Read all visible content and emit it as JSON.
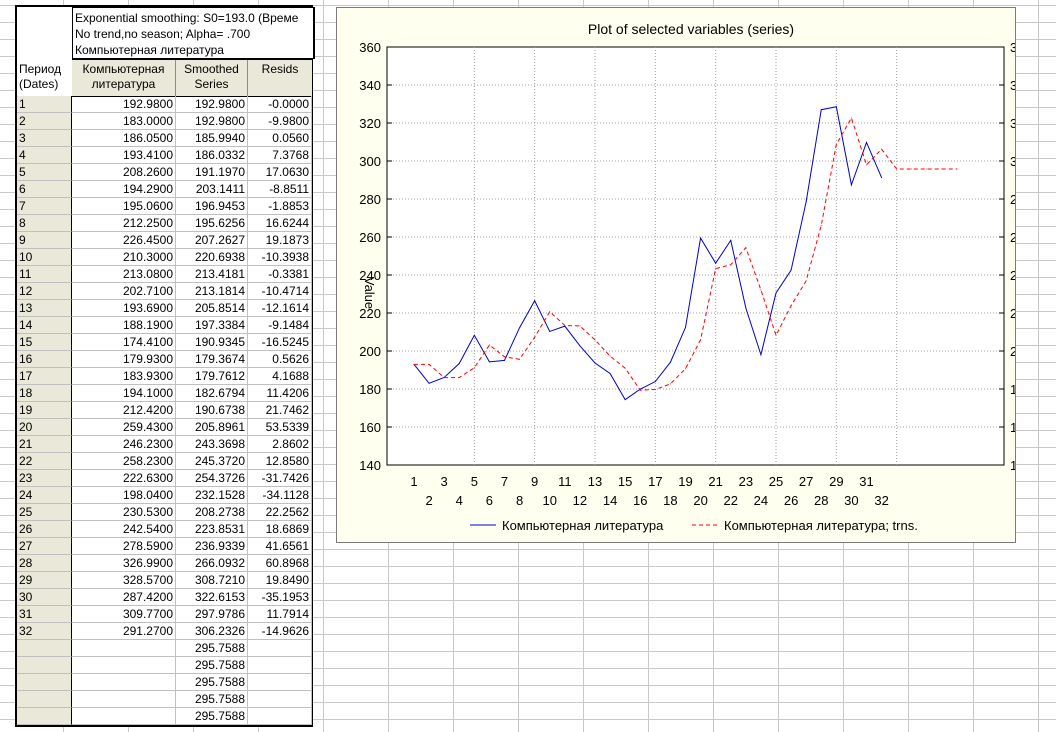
{
  "table": {
    "header_lines": [
      "Exponential smoothing: S0=193.0 (Време",
      "No trend,no season; Alpha= .700",
      "Компьютерная литература"
    ],
    "period_header": [
      "Период",
      "(Dates)"
    ],
    "columns": [
      [
        "Компьютерная",
        "литература"
      ],
      [
        "Smoothed",
        "Series"
      ],
      [
        "Resids",
        ""
      ]
    ],
    "rows": [
      {
        "id": "1",
        "a": "192.9800",
        "b": "192.9800",
        "c": "-0.0000"
      },
      {
        "id": "2",
        "a": "183.0000",
        "b": "192.9800",
        "c": "-9.9800"
      },
      {
        "id": "3",
        "a": "186.0500",
        "b": "185.9940",
        "c": "0.0560"
      },
      {
        "id": "4",
        "a": "193.4100",
        "b": "186.0332",
        "c": "7.3768"
      },
      {
        "id": "5",
        "a": "208.2600",
        "b": "191.1970",
        "c": "17.0630"
      },
      {
        "id": "6",
        "a": "194.2900",
        "b": "203.1411",
        "c": "-8.8511"
      },
      {
        "id": "7",
        "a": "195.0600",
        "b": "196.9453",
        "c": "-1.8853"
      },
      {
        "id": "8",
        "a": "212.2500",
        "b": "195.6256",
        "c": "16.6244"
      },
      {
        "id": "9",
        "a": "226.4500",
        "b": "207.2627",
        "c": "19.1873"
      },
      {
        "id": "10",
        "a": "210.3000",
        "b": "220.6938",
        "c": "-10.3938"
      },
      {
        "id": "11",
        "a": "213.0800",
        "b": "213.4181",
        "c": "-0.3381"
      },
      {
        "id": "12",
        "a": "202.7100",
        "b": "213.1814",
        "c": "-10.4714"
      },
      {
        "id": "13",
        "a": "193.6900",
        "b": "205.8514",
        "c": "-12.1614"
      },
      {
        "id": "14",
        "a": "188.1900",
        "b": "197.3384",
        "c": "-9.1484"
      },
      {
        "id": "15",
        "a": "174.4100",
        "b": "190.9345",
        "c": "-16.5245"
      },
      {
        "id": "16",
        "a": "179.9300",
        "b": "179.3674",
        "c": "0.5626"
      },
      {
        "id": "17",
        "a": "183.9300",
        "b": "179.7612",
        "c": "4.1688"
      },
      {
        "id": "18",
        "a": "194.1000",
        "b": "182.6794",
        "c": "11.4206"
      },
      {
        "id": "19",
        "a": "212.4200",
        "b": "190.6738",
        "c": "21.7462"
      },
      {
        "id": "20",
        "a": "259.4300",
        "b": "205.8961",
        "c": "53.5339"
      },
      {
        "id": "21",
        "a": "246.2300",
        "b": "243.3698",
        "c": "2.8602"
      },
      {
        "id": "22",
        "a": "258.2300",
        "b": "245.3720",
        "c": "12.8580"
      },
      {
        "id": "23",
        "a": "222.6300",
        "b": "254.3726",
        "c": "-31.7426"
      },
      {
        "id": "24",
        "a": "198.0400",
        "b": "232.1528",
        "c": "-34.1128"
      },
      {
        "id": "25",
        "a": "230.5300",
        "b": "208.2738",
        "c": "22.2562"
      },
      {
        "id": "26",
        "a": "242.5400",
        "b": "223.8531",
        "c": "18.6869"
      },
      {
        "id": "27",
        "a": "278.5900",
        "b": "236.9339",
        "c": "41.6561"
      },
      {
        "id": "28",
        "a": "326.9900",
        "b": "266.0932",
        "c": "60.8968"
      },
      {
        "id": "29",
        "a": "328.5700",
        "b": "308.7210",
        "c": "19.8490"
      },
      {
        "id": "30",
        "a": "287.4200",
        "b": "322.6153",
        "c": "-35.1953"
      },
      {
        "id": "31",
        "a": "309.7700",
        "b": "297.9786",
        "c": "11.7914"
      },
      {
        "id": "32",
        "a": "291.2700",
        "b": "306.2326",
        "c": "-14.9626"
      },
      {
        "id": "",
        "a": "",
        "b": "295.7588",
        "c": ""
      },
      {
        "id": "",
        "a": "",
        "b": "295.7588",
        "c": ""
      },
      {
        "id": "",
        "a": "",
        "b": "295.7588",
        "c": ""
      },
      {
        "id": "",
        "a": "",
        "b": "295.7588",
        "c": ""
      },
      {
        "id": "",
        "a": "",
        "b": "295.7588",
        "c": ""
      }
    ]
  },
  "chart_data": {
    "type": "line",
    "title": "Plot of selected variables (series)",
    "ylabel": "Value",
    "xlabel": "",
    "ylim": [
      140,
      360
    ],
    "yticks": [
      140,
      160,
      180,
      200,
      220,
      240,
      260,
      280,
      300,
      320,
      340,
      360
    ],
    "xlim": [
      1,
      37
    ],
    "xticks_odd": [
      1,
      3,
      5,
      7,
      9,
      11,
      13,
      15,
      17,
      19,
      21,
      23,
      25,
      27,
      29,
      31
    ],
    "xticks_even": [
      2,
      4,
      6,
      8,
      10,
      12,
      14,
      16,
      18,
      20,
      22,
      24,
      26,
      28,
      30,
      32
    ],
    "grid": true,
    "legend_position": "bottom",
    "series": [
      {
        "name": "Компьютерная литература",
        "color": "#0000cc",
        "style": "solid",
        "x": [
          1,
          2,
          3,
          4,
          5,
          6,
          7,
          8,
          9,
          10,
          11,
          12,
          13,
          14,
          15,
          16,
          17,
          18,
          19,
          20,
          21,
          22,
          23,
          24,
          25,
          26,
          27,
          28,
          29,
          30,
          31,
          32
        ],
        "values": [
          192.98,
          183.0,
          186.05,
          193.41,
          208.26,
          194.29,
          195.06,
          212.25,
          226.45,
          210.3,
          213.08,
          202.71,
          193.69,
          188.19,
          174.41,
          179.93,
          183.93,
          194.1,
          212.42,
          259.43,
          246.23,
          258.23,
          222.63,
          198.04,
          230.53,
          242.54,
          278.59,
          326.99,
          328.57,
          287.42,
          309.77,
          291.27
        ]
      },
      {
        "name": "Компьютерная литература; trns.",
        "color": "#ff0000",
        "style": "dashed",
        "x": [
          1,
          2,
          3,
          4,
          5,
          6,
          7,
          8,
          9,
          10,
          11,
          12,
          13,
          14,
          15,
          16,
          17,
          18,
          19,
          20,
          21,
          22,
          23,
          24,
          25,
          26,
          27,
          28,
          29,
          30,
          31,
          32,
          33,
          34,
          35,
          36,
          37
        ],
        "values": [
          192.98,
          192.98,
          185.994,
          186.0332,
          191.197,
          203.1411,
          196.9453,
          195.6256,
          207.2627,
          220.6938,
          213.4181,
          213.1814,
          205.8514,
          197.3384,
          190.9345,
          179.3674,
          179.7612,
          182.6794,
          190.6738,
          205.8961,
          243.3698,
          245.372,
          254.3726,
          232.1528,
          208.2738,
          223.8531,
          236.9339,
          266.0932,
          308.721,
          322.6153,
          297.9786,
          306.2326,
          295.7588,
          295.7588,
          295.7588,
          295.7588,
          295.7588
        ]
      }
    ]
  }
}
